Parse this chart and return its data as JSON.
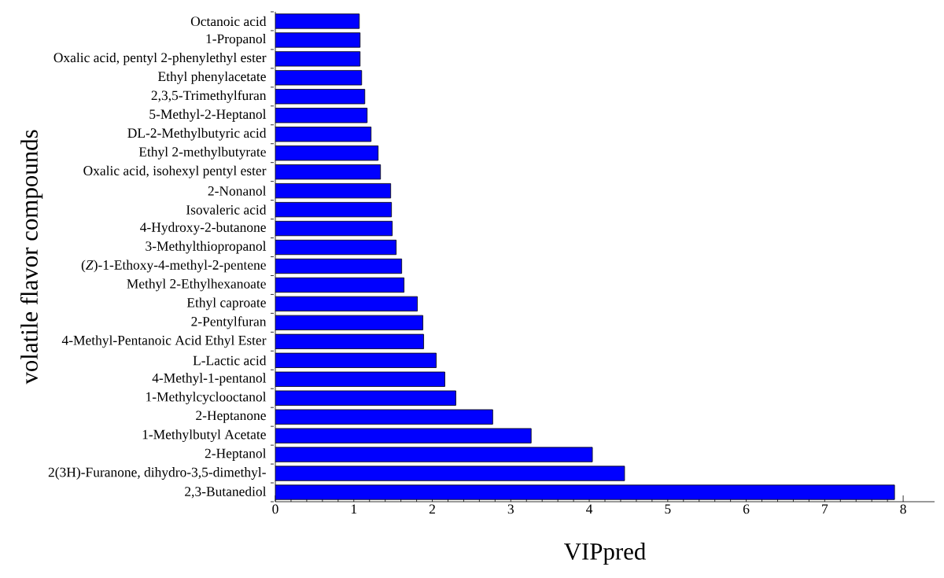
{
  "chart_data": {
    "type": "bar",
    "orientation": "horizontal",
    "xlabel": "VIPpred",
    "ylabel": "volatile flavor compounds",
    "categories": [
      "Octanoic acid",
      "1-Propanol",
      "Oxalic acid, pentyl 2-phenylethyl ester",
      "Ethyl phenylacetate",
      "2,3,5-Trimethylfuran",
      "5-Methyl-2-Heptanol",
      "DL-2-Methylbutyric acid",
      "Ethyl 2-methylbutyrate",
      "Oxalic acid, isohexyl pentyl ester",
      "2-Nonanol",
      "Isovaleric acid",
      "4-Hydroxy-2-butanone",
      "3-Methylthiopropanol",
      "(*Z*)-1-Ethoxy-4-methyl-2-pentene",
      "Methyl 2-Ethylhexanoate",
      "Ethyl caproate",
      "2-Pentylfuran",
      "4-Methyl-Pentanoic Acid Ethyl Ester",
      "L-Lactic acid",
      "4-Methyl-1-pentanol",
      "1-Methylcyclooctanol",
      "2-Heptanone",
      "1-Methylbutyl Acetate",
      "2-Heptanol",
      "2(3H)-Furanone, dihydro-3,5-dimethyl-",
      "2,3-Butanediol"
    ],
    "values": [
      1.07,
      1.08,
      1.08,
      1.1,
      1.14,
      1.17,
      1.22,
      1.31,
      1.34,
      1.47,
      1.48,
      1.49,
      1.54,
      1.61,
      1.64,
      1.81,
      1.88,
      1.89,
      2.05,
      2.16,
      2.3,
      2.77,
      3.26,
      4.04,
      4.45,
      7.89
    ],
    "color": "#0000ff",
    "xlim": [
      0,
      8.4
    ],
    "xticks": [
      0,
      1,
      2,
      3,
      4,
      5,
      6,
      7,
      8
    ],
    "grid": false
  }
}
